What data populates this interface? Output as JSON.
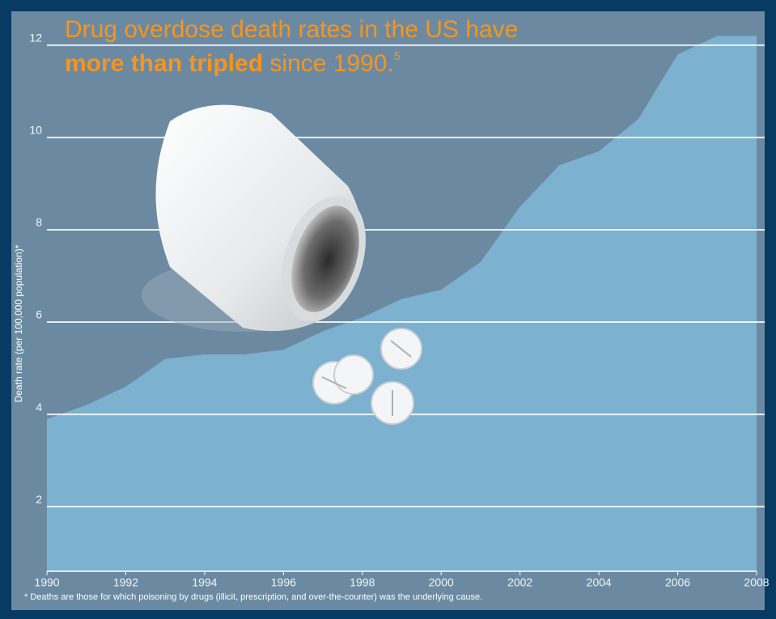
{
  "chart_data": {
    "type": "area",
    "title": "Drug overdose death rates in the US have",
    "title_emphasis": "more than tripled",
    "title_rest": "since 1990.",
    "title_ref": "5",
    "y_label": "Death rate (per 100,000 population)*",
    "footnote": "* Deaths are those for which poisoning by drugs (illicit, prescription, and over-the-counter) was the underlying cause.",
    "x": [
      1990,
      1991,
      1992,
      1993,
      1994,
      1995,
      1996,
      1997,
      1998,
      1999,
      2000,
      2001,
      2002,
      2003,
      2004,
      2005,
      2006,
      2007,
      2008
    ],
    "values": [
      3.9,
      4.2,
      4.6,
      5.2,
      5.3,
      5.3,
      5.4,
      5.8,
      6.1,
      6.5,
      6.7,
      7.3,
      8.5,
      9.4,
      9.7,
      10.4,
      11.8,
      12.2,
      12.2
    ],
    "color": "#7cb1d0",
    "xlim": [
      1990,
      2008
    ],
    "xticks": [
      1990,
      1992,
      1994,
      1996,
      1998,
      2000,
      2002,
      2004,
      2006,
      2008
    ],
    "ylim": [
      0.6,
      12.4
    ],
    "yticks": [
      2,
      4,
      6,
      8,
      10,
      12
    ],
    "grid": true
  }
}
